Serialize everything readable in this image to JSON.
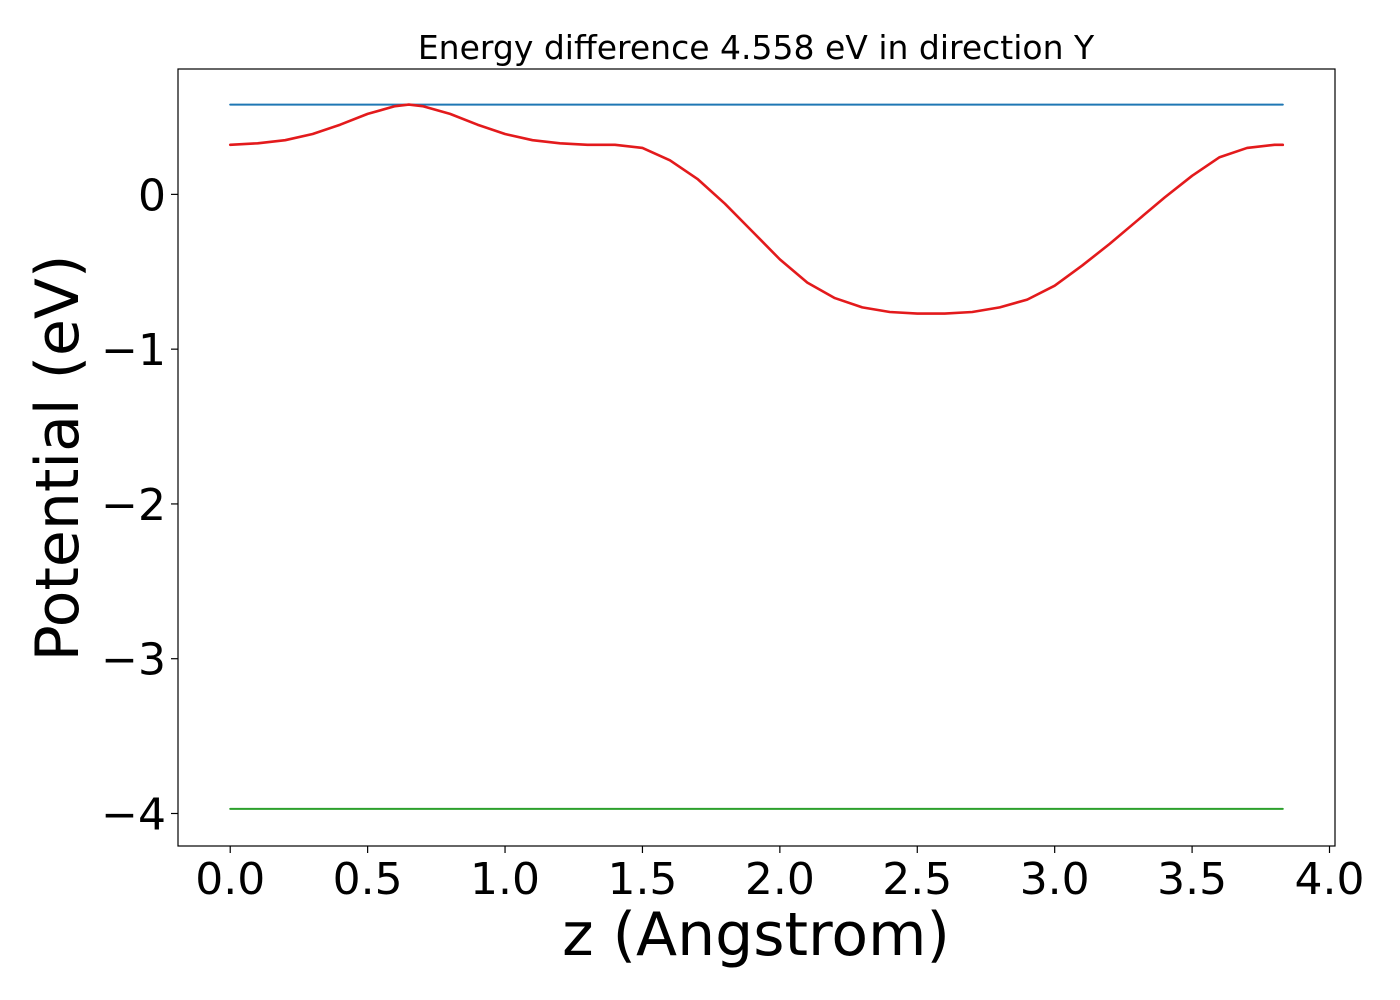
{
  "chart_data": {
    "type": "line",
    "title": "Energy difference 4.558 eV in direction Y",
    "xlabel": "z (Angstrom)",
    "ylabel": "Potential (eV)",
    "xlim": [
      -0.19,
      4.02
    ],
    "ylim": [
      -4.21,
      0.81
    ],
    "xticks": [
      0.0,
      0.5,
      1.0,
      1.5,
      2.0,
      2.5,
      3.0,
      3.5,
      4.0
    ],
    "xtick_labels": [
      "0.0",
      "0.5",
      "1.0",
      "1.5",
      "2.0",
      "2.5",
      "3.0",
      "3.5",
      "4.0"
    ],
    "yticks": [
      0,
      -1,
      -2,
      -3,
      -4
    ],
    "ytick_labels": [
      "0",
      "−1",
      "−2",
      "−3",
      "−4"
    ],
    "grid": false,
    "series": [
      {
        "color": "#1f77b4",
        "x": [
          0.0,
          3.83
        ],
        "y": [
          0.58,
          0.58
        ]
      },
      {
        "color": "#2ca02c",
        "x": [
          0.0,
          3.83
        ],
        "y": [
          -3.97,
          -3.97
        ]
      },
      {
        "color": "#e31a1c",
        "x": [
          0.0,
          0.1,
          0.2,
          0.3,
          0.4,
          0.5,
          0.6,
          0.65,
          0.7,
          0.8,
          0.9,
          1.0,
          1.1,
          1.2,
          1.3,
          1.4,
          1.5,
          1.6,
          1.7,
          1.8,
          1.9,
          2.0,
          2.1,
          2.2,
          2.3,
          2.4,
          2.5,
          2.6,
          2.7,
          2.8,
          2.9,
          3.0,
          3.1,
          3.2,
          3.3,
          3.4,
          3.5,
          3.6,
          3.7,
          3.8,
          3.83
        ],
        "y": [
          0.32,
          0.33,
          0.35,
          0.39,
          0.45,
          0.52,
          0.57,
          0.58,
          0.57,
          0.52,
          0.45,
          0.39,
          0.35,
          0.33,
          0.32,
          0.32,
          0.3,
          0.22,
          0.1,
          -0.06,
          -0.24,
          -0.42,
          -0.57,
          -0.67,
          -0.73,
          -0.76,
          -0.77,
          -0.77,
          -0.76,
          -0.73,
          -0.68,
          -0.59,
          -0.46,
          -0.32,
          -0.17,
          -0.02,
          0.12,
          0.24,
          0.3,
          0.32,
          0.32
        ]
      }
    ]
  }
}
